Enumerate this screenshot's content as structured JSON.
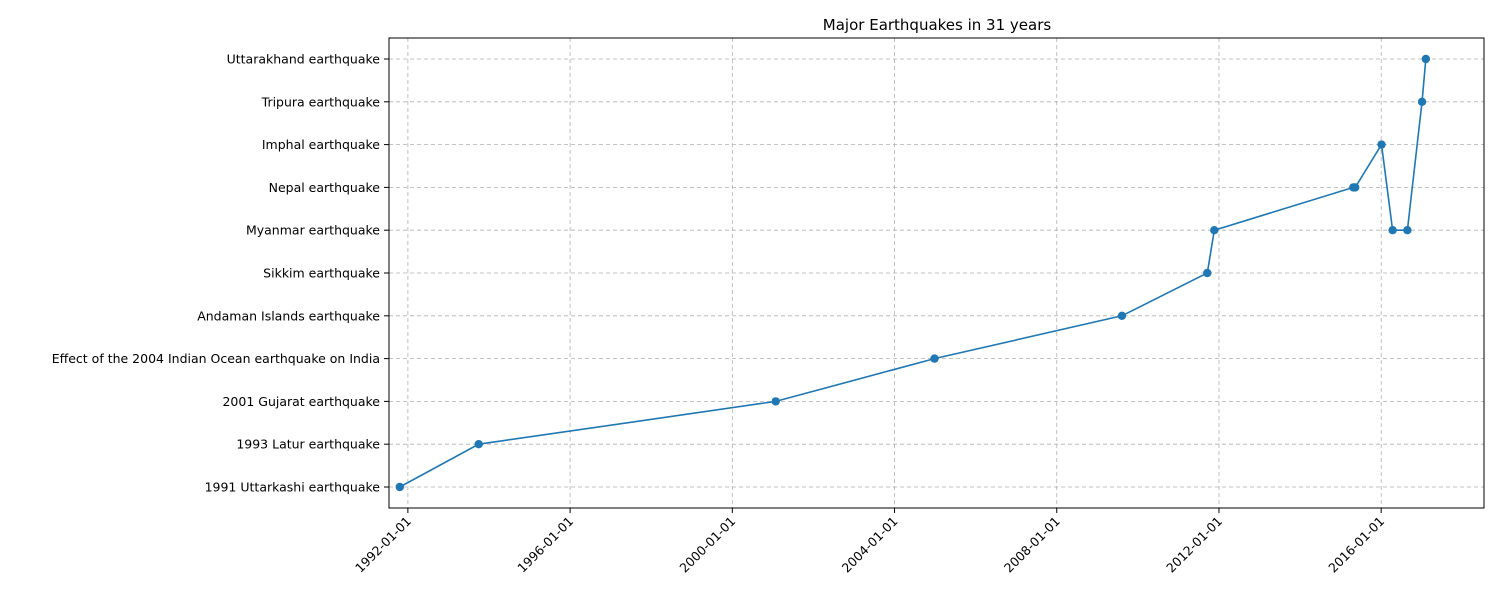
{
  "chart_data": {
    "type": "line",
    "title": "Major Earthquakes in 31 years",
    "xlabel": "",
    "ylabel": "",
    "x_axis_type": "date",
    "xlim": [
      "1991-07-15",
      "2018-07-15"
    ],
    "x_ticks": [
      "1992-01-01",
      "1996-01-01",
      "2000-01-01",
      "2004-01-01",
      "2008-01-01",
      "2012-01-01",
      "2016-01-01"
    ],
    "categories": [
      "1991 Uttarkashi earthquake",
      "1993 Latur earthquake",
      "2001 Gujarat earthquake",
      "Effect of the 2004 Indian Ocean earthquake on India",
      "Andaman Islands earthquake",
      "Sikkim earthquake",
      "Myanmar earthquake",
      "Nepal earthquake",
      "Imphal earthquake",
      "Tripura earthquake",
      "Uttarakhand earthquake"
    ],
    "grid": true,
    "legend": "none",
    "marker": "circle",
    "line_color": "#1f77b4",
    "series": [
      {
        "points": [
          {
            "x": "1991-10-20",
            "y": "1991 Uttarkashi earthquake"
          },
          {
            "x": "1993-09-30",
            "y": "1993 Latur earthquake"
          },
          {
            "x": "2001-01-26",
            "y": "2001 Gujarat earthquake"
          },
          {
            "x": "2004-12-26",
            "y": "Effect of the 2004 Indian Ocean earthquake on India"
          },
          {
            "x": "2009-08-10",
            "y": "Andaman Islands earthquake"
          },
          {
            "x": "2011-09-18",
            "y": "Sikkim earthquake"
          },
          {
            "x": "2011-11-20",
            "y": "Myanmar earthquake"
          },
          {
            "x": "2015-04-25",
            "y": "Nepal earthquake"
          },
          {
            "x": "2015-05-12",
            "y": "Nepal earthquake"
          },
          {
            "x": "2016-01-04",
            "y": "Imphal earthquake"
          },
          {
            "x": "2016-04-13",
            "y": "Myanmar earthquake"
          },
          {
            "x": "2016-08-24",
            "y": "Myanmar earthquake"
          },
          {
            "x": "2017-01-03",
            "y": "Tripura earthquake"
          },
          {
            "x": "2017-02-06",
            "y": "Uttarakhand earthquake"
          }
        ]
      }
    ]
  }
}
